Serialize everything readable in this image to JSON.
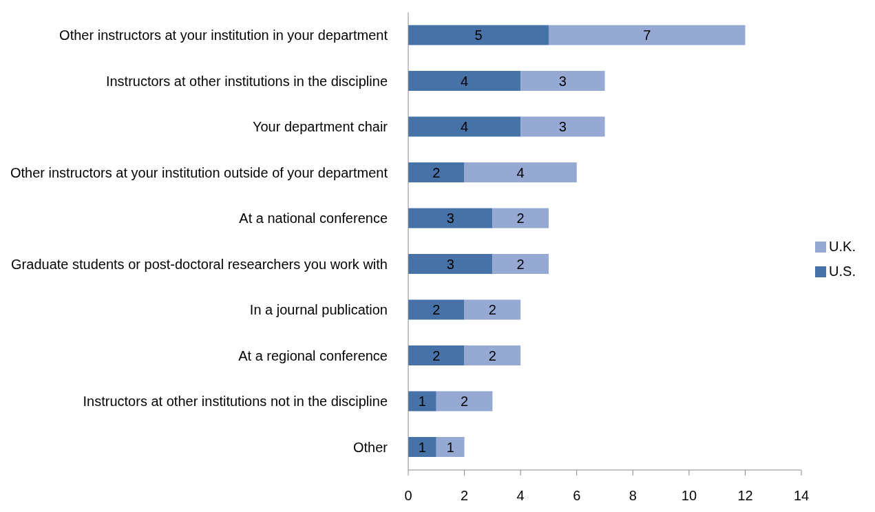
{
  "chart_data": {
    "type": "bar",
    "orientation": "horizontal",
    "stacked": true,
    "categories": [
      "Other instructors at your institution in your department",
      "Instructors at other institutions in the discipline",
      "Your department chair",
      "Other instructors at your institution outside of your department",
      "At a national conference",
      "Graduate students or post-doctoral researchers you work with",
      "In a journal publication",
      "At a regional conference",
      "Instructors at other institutions not in the discipline",
      "Other"
    ],
    "series": [
      {
        "name": "U.S.",
        "color": "#4672a8",
        "values": [
          5,
          4,
          4,
          2,
          3,
          3,
          2,
          2,
          1,
          1
        ]
      },
      {
        "name": "U.K.",
        "color": "#95a9d3",
        "values": [
          7,
          3,
          3,
          4,
          2,
          2,
          2,
          2,
          2,
          1
        ]
      }
    ],
    "xlim": [
      0,
      14
    ],
    "xticks": [
      0,
      2,
      4,
      6,
      8,
      10,
      12,
      14
    ],
    "data_labels": true,
    "legend": "right",
    "grid": false
  }
}
